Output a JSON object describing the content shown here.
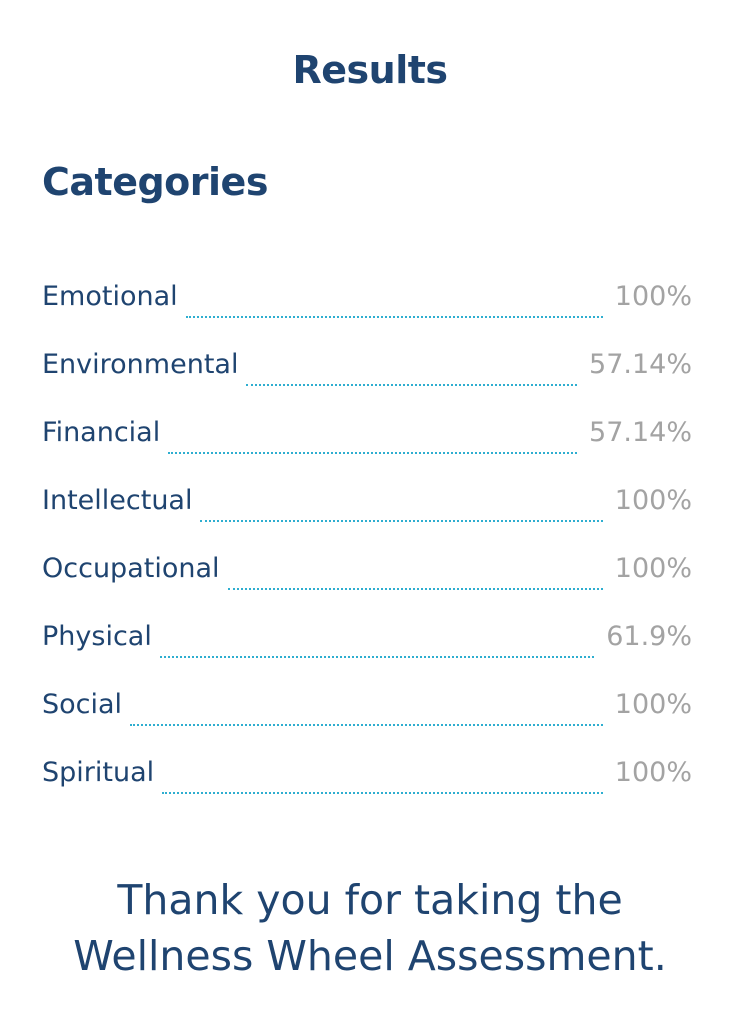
{
  "page": {
    "title": "Results"
  },
  "categories": {
    "heading": "Categories",
    "items": [
      {
        "label": "Emotional",
        "value": "100%"
      },
      {
        "label": "Environmental",
        "value": "57.14%"
      },
      {
        "label": "Financial",
        "value": "57.14%"
      },
      {
        "label": "Intellectual",
        "value": "100%"
      },
      {
        "label": "Occupational",
        "value": "100%"
      },
      {
        "label": "Physical",
        "value": "61.9%"
      },
      {
        "label": "Social",
        "value": "100%"
      },
      {
        "label": "Spiritual",
        "value": "100%"
      }
    ]
  },
  "footer": {
    "line1": "Thank you for taking the",
    "line2": "Wellness Wheel Assessment."
  },
  "colors": {
    "heading": "#1f4470",
    "value": "#a3a3a3",
    "leader": "#2eaed0"
  }
}
